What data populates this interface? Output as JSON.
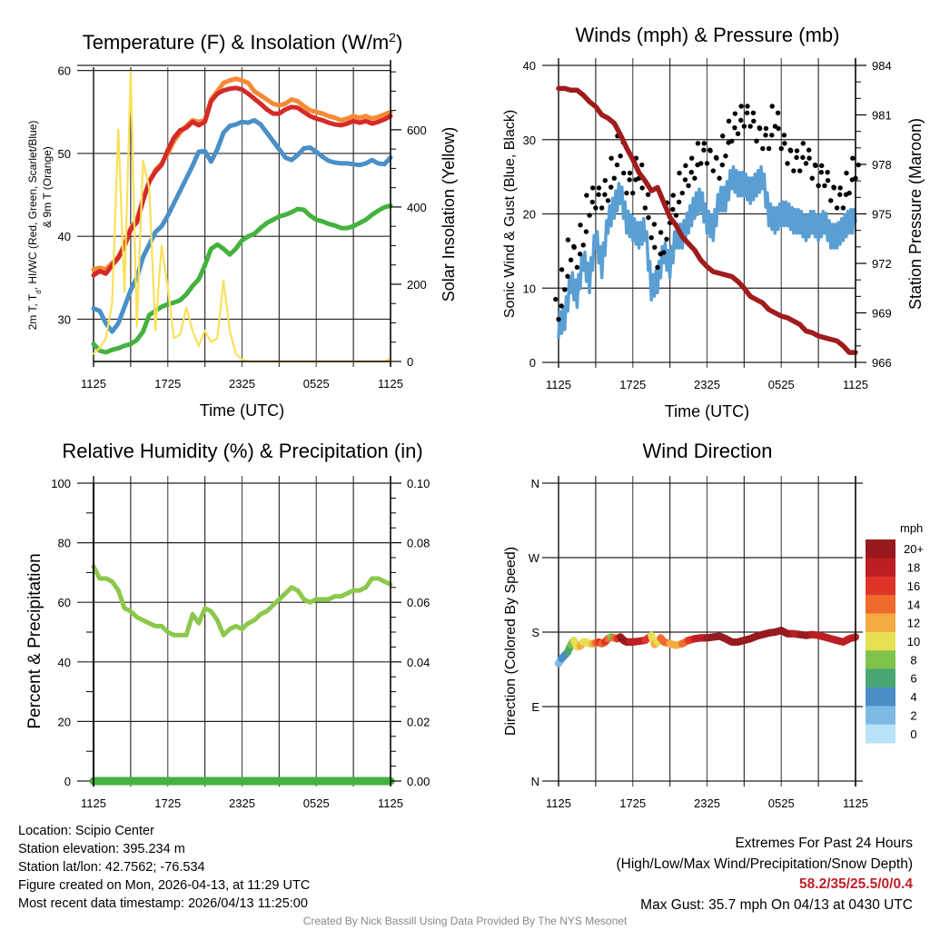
{
  "time_ticks": [
    "1125",
    "1725",
    "2325",
    "0525",
    "1125"
  ],
  "chart_data": [
    {
      "id": "temperature",
      "type": "line",
      "title": "Temperature (F) & Insolation (W/m²)",
      "xlabel": "Time (UTC)",
      "ylabel": "2m T, Td, HI/WC (Red, Green, Scarlet/Blue) & 9m T (Orange)",
      "ylabel_line1": "2m T, T",
      "ylabel_sub": "d",
      "ylabel_line1_rest": ", HI/WC (Red, Green, Scarlet/Blue)",
      "ylabel_line2": "& 9m T (Orange)",
      "y2label": "Solar Insolation (Yellow)",
      "xlim_hours": [
        0,
        24
      ],
      "ylim": [
        24.9,
        60.4
      ],
      "y2lim": [
        0,
        762
      ],
      "yticks": [
        30,
        40,
        50,
        60
      ],
      "y2ticks": [
        0,
        200,
        400,
        600
      ],
      "x_hours": [
        0,
        0.5,
        1,
        1.5,
        2,
        2.5,
        3,
        3.5,
        4,
        4.5,
        5,
        5.5,
        6,
        6.5,
        7,
        7.5,
        8,
        8.5,
        9,
        9.5,
        10,
        10.5,
        11,
        11.5,
        12,
        12.5,
        13,
        13.5,
        14,
        14.5,
        15,
        15.5,
        16,
        16.5,
        17,
        17.5,
        18,
        18.5,
        19,
        19.5,
        20,
        20.5,
        21,
        21.5,
        22,
        22.5,
        23,
        23.5,
        24
      ],
      "series": [
        {
          "name": "9m T",
          "color": "#f58a33",
          "values": [
            36.0,
            36.2,
            36.0,
            36.8,
            37.5,
            39.0,
            41.0,
            42.0,
            44.5,
            46.5,
            48.0,
            48.8,
            50.0,
            51.5,
            52.5,
            53.3,
            54.0,
            53.8,
            54.0,
            56.5,
            57.5,
            58.5,
            58.8,
            59.0,
            58.8,
            58.5,
            57.5,
            57.0,
            56.5,
            56.0,
            55.8,
            56.0,
            56.5,
            56.3,
            55.7,
            55.2,
            55.0,
            54.8,
            54.5,
            54.3,
            54.0,
            54.2,
            54.5,
            54.3,
            54.5,
            54.2,
            54.4,
            54.7,
            55.0
          ]
        },
        {
          "name": "2m T",
          "color": "#d42a28",
          "values": [
            35.3,
            35.8,
            35.5,
            36.5,
            37.4,
            38.8,
            40.8,
            41.7,
            44.3,
            46.6,
            47.8,
            48.6,
            50.4,
            51.9,
            52.8,
            53.1,
            53.8,
            53.4,
            53.8,
            56.3,
            57.2,
            57.6,
            57.8,
            57.9,
            57.7,
            57.2,
            56.6,
            56.0,
            55.3,
            54.8,
            54.8,
            55.3,
            55.6,
            55.5,
            55.0,
            54.5,
            54.2,
            54.0,
            53.7,
            53.5,
            53.4,
            53.6,
            53.9,
            53.7,
            53.9,
            53.6,
            53.8,
            54.1,
            54.5
          ]
        },
        {
          "name": "HI/WC",
          "color": "#4a90c8",
          "values": [
            31.3,
            31.0,
            29.5,
            28.5,
            29.5,
            31.5,
            33.5,
            35.0,
            37.5,
            39.0,
            40.5,
            41.2,
            42.5,
            44.0,
            45.5,
            47.0,
            48.5,
            50.2,
            50.3,
            49.0,
            50.5,
            52.5,
            53.3,
            53.5,
            53.8,
            53.7,
            54.0,
            53.5,
            52.5,
            51.5,
            50.5,
            49.5,
            49.2,
            49.8,
            50.6,
            50.7,
            50.2,
            49.6,
            49.1,
            48.9,
            48.8,
            48.8,
            48.7,
            48.6,
            48.8,
            49.2,
            48.8,
            48.7,
            49.5
          ]
        },
        {
          "name": "Td",
          "color": "#44b23e",
          "values": [
            27.0,
            26.2,
            26.0,
            26.3,
            26.5,
            26.8,
            27.0,
            27.5,
            28.5,
            30.5,
            31.0,
            31.5,
            31.8,
            32.0,
            32.3,
            33.0,
            34.0,
            34.8,
            36.5,
            38.5,
            39.0,
            38.5,
            37.8,
            38.5,
            39.5,
            40.0,
            40.3,
            41.0,
            41.6,
            42.0,
            42.4,
            42.6,
            42.9,
            43.3,
            43.2,
            42.5,
            42.0,
            41.8,
            41.5,
            41.3,
            41.0,
            41.0,
            41.2,
            41.6,
            42.0,
            42.6,
            43.1,
            43.5,
            43.7
          ]
        },
        {
          "name": "Solar Insolation",
          "color": "#fbe05a",
          "axis": "right",
          "values": [
            20,
            35,
            60,
            150,
            600,
            180,
            750,
            90,
            520,
            450,
            80,
            300,
            190,
            60,
            70,
            140,
            80,
            40,
            80,
            50,
            60,
            210,
            80,
            20,
            5,
            0,
            0,
            0,
            0,
            0,
            0,
            0,
            0,
            0,
            0,
            0,
            0,
            0,
            0,
            0,
            0,
            0,
            0,
            0,
            0,
            0,
            0,
            0,
            8
          ]
        }
      ]
    },
    {
      "id": "winds",
      "type": "line",
      "title": "Winds (mph) & Pressure (mb)",
      "xlabel": "Time (UTC)",
      "ylabel": "Sonic Wind & Gust (Blue, Black)",
      "y2label": "Station Pressure (Maroon)",
      "xlim_hours": [
        0,
        24
      ],
      "ylim": [
        0,
        40
      ],
      "y2lim": [
        966,
        984
      ],
      "yticks": [
        0,
        10,
        20,
        30,
        40
      ],
      "y2ticks": [
        966,
        969,
        972,
        975,
        978,
        981,
        984
      ],
      "x_hours": [
        0,
        0.5,
        1,
        1.5,
        2,
        2.5,
        3,
        3.5,
        4,
        4.5,
        5,
        5.5,
        6,
        6.5,
        7,
        7.5,
        8,
        8.5,
        9,
        9.5,
        10,
        10.5,
        11,
        11.5,
        12,
        12.5,
        13,
        13.5,
        14,
        14.5,
        15,
        15.5,
        16,
        16.5,
        17,
        17.5,
        18,
        18.5,
        19,
        19.5,
        20,
        20.5,
        21,
        21.5,
        22,
        22.5,
        23,
        23.5,
        24
      ],
      "series": [
        {
          "name": "Sonic Wind",
          "color": "#5a9fd4",
          "values": [
            5,
            6,
            11,
            9,
            14,
            11,
            17,
            13,
            19,
            21,
            23,
            19,
            18,
            17,
            18,
            10,
            11,
            15,
            13,
            17,
            17,
            19,
            21,
            22,
            19,
            18,
            22,
            22,
            25,
            24,
            24,
            23,
            24,
            25,
            20,
            19,
            20,
            20,
            19,
            19,
            18,
            19,
            18,
            19,
            17,
            17,
            18,
            19,
            19
          ]
        },
        {
          "name": "Gust",
          "color": "#000000",
          "type": "scatter",
          "values": [
            7,
            11,
            15,
            14,
            17,
            21,
            22,
            22,
            23,
            26,
            29,
            24,
            24,
            26,
            22,
            18,
            14,
            16,
            20,
            21,
            24,
            25,
            26,
            28,
            28,
            27,
            26,
            29,
            31,
            32,
            33,
            33,
            31,
            30,
            30,
            33,
            30,
            28,
            27,
            27,
            28,
            26,
            25,
            25,
            23,
            22,
            22,
            24,
            26
          ]
        },
        {
          "name": "Station Pressure",
          "color": "#a01c1c",
          "axis": "right",
          "values": [
            982.6,
            982.6,
            982.5,
            982.5,
            982.2,
            981.8,
            981.5,
            981.0,
            980.8,
            980.5,
            979.8,
            979.0,
            978.3,
            977.5,
            977.0,
            976.4,
            976.6,
            975.7,
            974.8,
            974.3,
            973.6,
            973.2,
            972.8,
            972.2,
            971.8,
            971.5,
            971.4,
            971.3,
            971.2,
            970.9,
            970.5,
            970.0,
            969.8,
            969.6,
            969.2,
            969.0,
            968.8,
            968.7,
            968.5,
            968.3,
            967.9,
            967.8,
            967.6,
            967.5,
            967.4,
            967.3,
            967.0,
            966.6,
            966.6
          ]
        }
      ]
    },
    {
      "id": "humidity",
      "type": "line",
      "title": "Relative Humidity (%) & Precipitation (in)",
      "xlabel": "",
      "ylabel": "Percent & Precipitation",
      "xlim_hours": [
        0,
        24
      ],
      "ylim": [
        0,
        100
      ],
      "y2lim": [
        0,
        0.1
      ],
      "yticks": [
        0,
        20,
        40,
        60,
        80,
        100
      ],
      "y2ticks": [
        "0.00",
        "0.02",
        "0.04",
        "0.06",
        "0.08",
        "0.10"
      ],
      "x_hours": [
        0,
        0.5,
        1,
        1.5,
        2,
        2.5,
        3,
        3.5,
        4,
        4.5,
        5,
        5.5,
        6,
        6.5,
        7,
        7.5,
        8,
        8.5,
        9,
        9.5,
        10,
        10.5,
        11,
        11.5,
        12,
        12.5,
        13,
        13.5,
        14,
        14.5,
        15,
        15.5,
        16,
        16.5,
        17,
        17.5,
        18,
        18.5,
        19,
        19.5,
        20,
        20.5,
        21,
        21.5,
        22,
        22.5,
        23,
        23.5,
        24
      ],
      "series": [
        {
          "name": "Relative Humidity",
          "color": "#8cc84b",
          "values": [
            72,
            68,
            68,
            67,
            64,
            58,
            57,
            55,
            54,
            53,
            52,
            52,
            50,
            49,
            49,
            49,
            56,
            53,
            58,
            57,
            54,
            49,
            51,
            52,
            51,
            53,
            54,
            56,
            57,
            59,
            61,
            63,
            65,
            64,
            61,
            60,
            61,
            61,
            61,
            62,
            62,
            63,
            64,
            64,
            65,
            68,
            68,
            67,
            66
          ]
        },
        {
          "name": "Precipitation",
          "color": "#44b23e",
          "axis": "right",
          "values": [
            0,
            0,
            0,
            0,
            0,
            0,
            0,
            0,
            0,
            0,
            0,
            0,
            0,
            0,
            0,
            0,
            0,
            0,
            0,
            0,
            0,
            0,
            0,
            0,
            0,
            0,
            0,
            0,
            0,
            0,
            0,
            0,
            0,
            0,
            0,
            0,
            0,
            0,
            0,
            0,
            0,
            0,
            0,
            0,
            0,
            0,
            0,
            0,
            0
          ]
        }
      ]
    },
    {
      "id": "direction",
      "type": "scatter",
      "title": "Wind Direction",
      "xlabel": "",
      "ylabel": "Direction (Colored By Speed)",
      "xlim_hours": [
        0,
        24
      ],
      "ylim_degrees": [
        0,
        360
      ],
      "ytick_labels": [
        "N",
        "E",
        "S",
        "W",
        "N"
      ],
      "ytick_degrees": [
        0,
        90,
        180,
        270,
        360
      ],
      "legend_title": "mph",
      "legend_labels": [
        "0",
        "2",
        "4",
        "6",
        "8",
        "10",
        "12",
        "14",
        "16",
        "18",
        "20+"
      ],
      "legend_colors": [
        "#b9e3f7",
        "#7dbae3",
        "#4a8cc4",
        "#4aa672",
        "#7fc34a",
        "#e6e052",
        "#f6aa44",
        "#ef6a2c",
        "#de3428",
        "#bd1e24",
        "#961a1e"
      ],
      "legend_position": "right",
      "x_hours": [
        0,
        0.25,
        0.5,
        0.75,
        1,
        1.25,
        1.5,
        1.75,
        2,
        2.25,
        2.5,
        2.75,
        3,
        3.25,
        3.5,
        3.75,
        4,
        4.25,
        4.5,
        4.75,
        5,
        5.25,
        5.5,
        5.75,
        6,
        6.5,
        7,
        7.5,
        7.75,
        8,
        8.25,
        8.5,
        9,
        9.5,
        10,
        10.5,
        11,
        11.5,
        12,
        12.5,
        13,
        13.5,
        14,
        14.5,
        15,
        15.5,
        16,
        16.5,
        17,
        17.5,
        18,
        18.5,
        19,
        19.5,
        20,
        20.5,
        21,
        21.5,
        22,
        22.5,
        23,
        23.5,
        24
      ],
      "directions": [
        142,
        148,
        152,
        156,
        165,
        170,
        162,
        163,
        168,
        168,
        166,
        166,
        167,
        168,
        166,
        168,
        172,
        174,
        173,
        172,
        174,
        170,
        168,
        168,
        168,
        169,
        170,
        176,
        165,
        168,
        173,
        168,
        166,
        164,
        166,
        170,
        172,
        173,
        173,
        174,
        175,
        172,
        168,
        168,
        170,
        172,
        175,
        177,
        179,
        180,
        182,
        178,
        178,
        177,
        176,
        177,
        176,
        174,
        172,
        170,
        168,
        172,
        174
      ],
      "speeds": [
        3,
        4,
        5,
        6,
        9,
        11,
        10,
        12,
        11,
        10,
        10,
        13,
        14,
        16,
        15,
        16,
        14,
        9,
        15,
        17,
        20,
        21,
        20,
        19,
        18,
        18,
        17,
        10,
        12,
        11,
        15,
        14,
        12,
        13,
        15,
        17,
        18,
        19,
        20,
        21,
        21,
        20,
        21,
        21,
        21,
        21,
        21,
        21,
        21,
        20,
        21,
        20,
        19,
        20,
        20,
        19,
        18,
        18,
        18,
        19,
        18,
        19,
        18
      ]
    }
  ],
  "station": {
    "location": "Location: Scipio Center",
    "elevation": "Station elevation: 395.234 m",
    "latlon": "Station lat/lon: 42.7562; -76.534",
    "created": "Figure created on Mon, 2026-04-13, at 11:29 UTC",
    "recent": "Most recent data timestamp: 2026/04/13 11:25:00"
  },
  "extremes": {
    "title": "Extremes For Past 24 Hours",
    "subtitle": "(High/Low/Max Wind/Precipitation/Snow Depth)",
    "values": "58.2/35/25.5/0/0.4",
    "max_gust": "Max Gust: 35.7 mph On 04/13 at 0430 UTC"
  },
  "credit": "Created By Nick Bassill Using Data Provided By The NYS Mesonet"
}
